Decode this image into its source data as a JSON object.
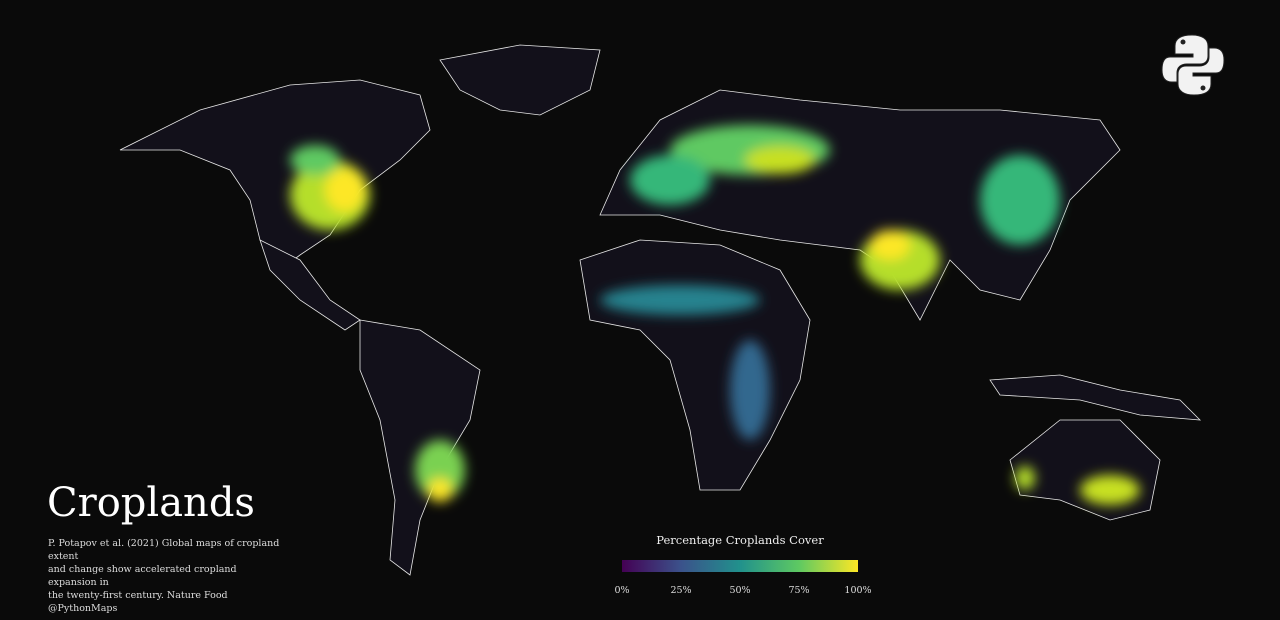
{
  "title": "Croplands",
  "source_lines": [
    "P. Potapov et al. (2021) Global maps of cropland extent",
    "and change show accelerated cropland expansion in",
    "the twenty-first century. Nature Food",
    "@PythonMaps"
  ],
  "legend": {
    "title": "Percentage Croplands Cover",
    "ticks": [
      "0%",
      "25%",
      "50%",
      "75%",
      "100%"
    ],
    "colormap": [
      "#440154",
      "#3b528b",
      "#21918c",
      "#5ec962",
      "#fde725"
    ],
    "range": [
      0,
      100
    ]
  },
  "logo_icon": "python-logo-icon",
  "colors": {
    "background": "#0a0a0a",
    "borders": "#ffffff"
  }
}
